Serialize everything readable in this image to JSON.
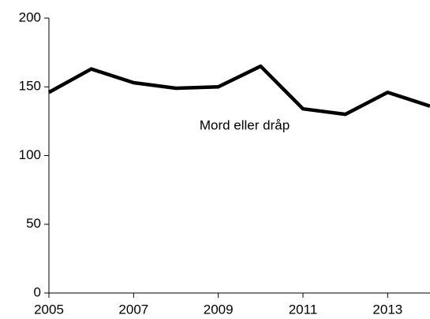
{
  "chart_data": {
    "type": "line",
    "x": [
      2005,
      2006,
      2007,
      2008,
      2009,
      2010,
      2011,
      2012,
      2013,
      2014
    ],
    "series": [
      {
        "name": "Mord eller dråp",
        "color": "#000000",
        "values": [
          146,
          163,
          153,
          149,
          150,
          165,
          134,
          130,
          146,
          136
        ]
      }
    ],
    "xlim": [
      2005,
      2014
    ],
    "xticks": [
      2005,
      2007,
      2009,
      2011,
      2013
    ],
    "ylim": [
      0,
      200
    ],
    "yticks": [
      0,
      50,
      100,
      150,
      200
    ],
    "grid": false
  }
}
